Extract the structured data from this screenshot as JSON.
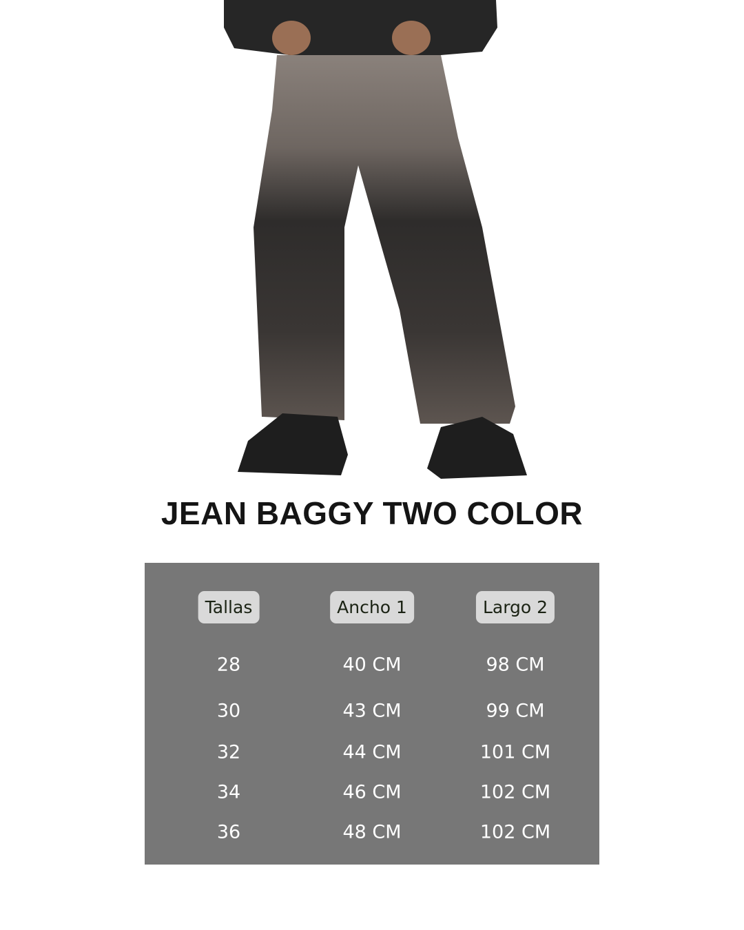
{
  "title": "JEAN BAGGY TWO COLOR",
  "colors": {
    "table_bg": "#777777",
    "header_pill": "#d9d9d9",
    "header_text": "#1b2314",
    "cell_text": "#ffffff"
  },
  "table": {
    "headers": [
      "Tallas",
      "Ancho 1",
      "Largo 2"
    ],
    "rows": [
      [
        "28",
        "40 CM",
        "98 CM"
      ],
      [
        "30",
        "43 CM",
        "99 CM"
      ],
      [
        "32",
        "44 CM",
        "101 CM"
      ],
      [
        "34",
        "46 CM",
        "102 CM"
      ],
      [
        "36",
        "48 CM",
        "102 CM"
      ]
    ]
  }
}
